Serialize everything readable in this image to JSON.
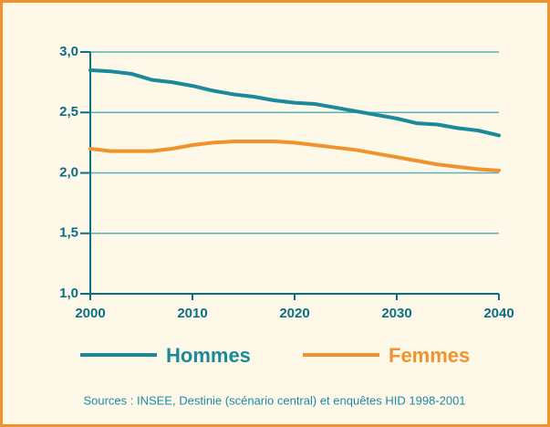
{
  "chart_data": {
    "type": "line",
    "x": [
      2000,
      2002,
      2004,
      2006,
      2008,
      2010,
      2012,
      2014,
      2016,
      2018,
      2020,
      2022,
      2024,
      2026,
      2028,
      2030,
      2032,
      2034,
      2036,
      2038,
      2040
    ],
    "series": [
      {
        "name": "Hommes",
        "color": "#1a8a9a",
        "values": [
          2.85,
          2.84,
          2.82,
          2.77,
          2.75,
          2.72,
          2.68,
          2.65,
          2.63,
          2.6,
          2.58,
          2.57,
          2.54,
          2.51,
          2.48,
          2.45,
          2.41,
          2.4,
          2.37,
          2.35,
          2.31
        ]
      },
      {
        "name": "Femmes",
        "color": "#f0922e",
        "values": [
          2.2,
          2.18,
          2.18,
          2.18,
          2.2,
          2.23,
          2.25,
          2.26,
          2.26,
          2.26,
          2.25,
          2.23,
          2.21,
          2.19,
          2.16,
          2.13,
          2.1,
          2.07,
          2.05,
          2.03,
          2.02
        ]
      }
    ],
    "xlim": [
      2000,
      2040
    ],
    "xticks": [
      2000,
      2010,
      2020,
      2030,
      2040
    ],
    "ylim": [
      1,
      3
    ],
    "yticks": [
      {
        "value": 1,
        "label": "1,0"
      },
      {
        "value": 1.5,
        "label": "1,5"
      },
      {
        "value": 2,
        "label": "2,0"
      },
      {
        "value": 2.5,
        "label": "2,5"
      },
      {
        "value": 3,
        "label": "3,0"
      }
    ],
    "grid": true,
    "legend": "bottom",
    "source": "Sources : INSEE, Destinie (scénario central) et enquêtes HID 1998-2001"
  }
}
